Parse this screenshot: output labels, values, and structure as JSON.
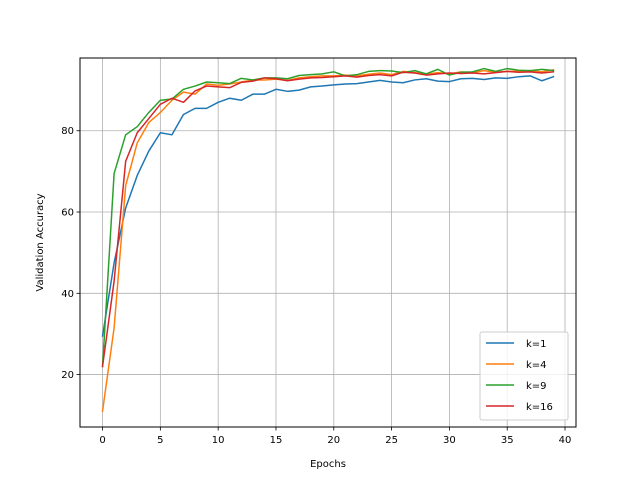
{
  "chart_data": {
    "type": "line",
    "title": "",
    "xlabel": "Epochs",
    "ylabel": "Validation Accuracy",
    "xlim": [
      -1.95,
      40.95
    ],
    "ylim": [
      7.1,
      97.9
    ],
    "xticks": [
      0,
      5,
      10,
      15,
      20,
      25,
      30,
      35,
      40
    ],
    "yticks": [
      20,
      40,
      60,
      80
    ],
    "grid": true,
    "legend_position": "lower right",
    "x": [
      0,
      1,
      2,
      3,
      4,
      5,
      6,
      7,
      8,
      9,
      10,
      11,
      12,
      13,
      14,
      15,
      16,
      17,
      18,
      19,
      20,
      21,
      22,
      23,
      24,
      25,
      26,
      27,
      28,
      29,
      30,
      31,
      32,
      33,
      34,
      35,
      36,
      37,
      38,
      39
    ],
    "series": [
      {
        "name": "k=1",
        "color": "#1f77b4",
        "values": [
          29.5,
          47.5,
          61.0,
          69.0,
          75.0,
          79.5,
          79.0,
          84.0,
          85.5,
          85.5,
          87.0,
          88.0,
          87.5,
          89.0,
          89.0,
          90.2,
          89.7,
          90.0,
          90.8,
          91.0,
          91.3,
          91.5,
          91.6,
          92.0,
          92.4,
          92.0,
          91.8,
          92.5,
          92.8,
          92.2,
          92.1,
          92.8,
          92.9,
          92.6,
          93.0,
          92.9,
          93.3,
          93.5,
          92.3,
          93.3
        ]
      },
      {
        "name": "k=4",
        "color": "#ff7f0e",
        "values": [
          11.0,
          31.5,
          66.5,
          77.0,
          82.0,
          84.5,
          87.5,
          89.5,
          89.0,
          91.5,
          91.2,
          91.5,
          92.0,
          92.5,
          92.5,
          92.7,
          92.4,
          93.0,
          93.3,
          93.5,
          93.5,
          93.7,
          93.5,
          93.9,
          94.2,
          93.8,
          94.6,
          94.3,
          93.9,
          94.3,
          94.0,
          94.5,
          94.3,
          94.8,
          94.4,
          94.6,
          94.7,
          94.8,
          94.5,
          95.0
        ]
      },
      {
        "name": "k=9",
        "color": "#2ca02c",
        "values": [
          22.0,
          69.5,
          79.0,
          81.0,
          84.5,
          87.5,
          87.8,
          90.2,
          91.0,
          92.0,
          91.8,
          91.6,
          92.9,
          92.5,
          93.0,
          93.0,
          92.8,
          93.6,
          93.8,
          94.0,
          94.5,
          93.5,
          93.8,
          94.6,
          94.8,
          94.7,
          94.3,
          94.8,
          94.0,
          95.1,
          93.7,
          94.4,
          94.5,
          95.3,
          94.6,
          95.3,
          94.9,
          94.8,
          95.1,
          94.8
        ]
      },
      {
        "name": "k=16",
        "color": "#d62728",
        "values": [
          22.0,
          43.0,
          72.5,
          79.5,
          83.0,
          86.5,
          88.0,
          87.0,
          89.8,
          91.0,
          90.8,
          90.6,
          91.9,
          92.2,
          93.0,
          92.8,
          92.3,
          92.7,
          93.0,
          93.1,
          93.3,
          93.5,
          93.2,
          93.6,
          93.8,
          93.5,
          94.4,
          94.2,
          93.7,
          94.0,
          94.2,
          94.1,
          94.2,
          94.0,
          94.3,
          94.6,
          94.4,
          94.5,
          94.2,
          94.5
        ]
      }
    ]
  }
}
